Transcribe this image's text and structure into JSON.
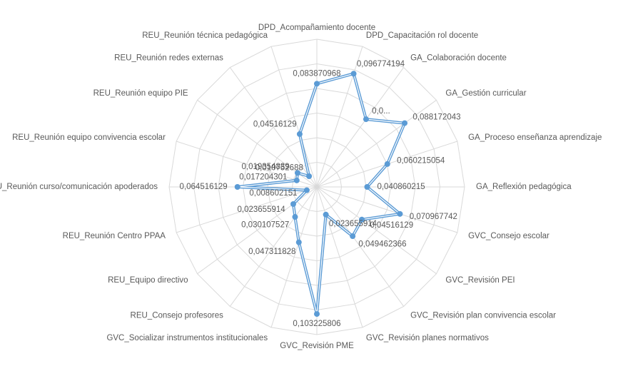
{
  "chart_data": {
    "type": "radar",
    "categories": [
      "DPD_Acompañamiento docente",
      "DPD_Capacitación rol docente",
      "GA_Colaboración docente",
      "GA_Gestión curricular",
      "GA_Proceso enseñanza aprendizaje",
      "GA_Reflexión pedagógica",
      "GVC_Consejo escolar",
      "GVC_Revisión PEI",
      "GVC_Revisión plan convivencia escolar",
      "GVC_Revisión planes normativos",
      "GVC_Revisión PME",
      "GVC_Socializar instrumentos institucionales",
      "REU_Consejo profesores",
      "REU_Equipo directivo",
      "REU_Reunión Centro PPAA",
      "REU_Reunión curso/comunicación apoderados",
      "REU_Reunión equipo convivencia escolar",
      "REU_Reunión equipo PIE",
      "REU_Reunión redes externas",
      "REU_Reunión técnica pedagógica"
    ],
    "values": [
      0.083870968,
      0.096774194,
      0.068,
      0.088172043,
      0.060215054,
      0.040860215,
      0.070967742,
      0.04516129,
      0.049462366,
      0.023655914,
      0.103225806,
      0.047311828,
      0.030107527,
      0.023655914,
      0.008602151,
      0.064516129,
      0.017204301,
      0.019354839,
      0.010752688,
      0.04516129
    ],
    "value_labels": [
      "0,083870968",
      "0,096774194",
      "0,0...",
      "0,088172043",
      "0,060215054",
      "0,040860215",
      "0,070967742",
      "0,04516129",
      "0,049462366",
      "0,023655914",
      "0,103225806",
      "0,047311828",
      "0,030107527",
      "0,023655914",
      "0,008602151",
      "0,064516129",
      "0,017204301",
      "0,019354839",
      "0,010752688",
      "0,04516129"
    ],
    "color": "#5b9bd5",
    "rlim": [
      0,
      0.12
    ],
    "rticks": [
      0.02,
      0.04,
      0.06,
      0.08,
      0.1,
      0.12
    ],
    "grid": true
  }
}
